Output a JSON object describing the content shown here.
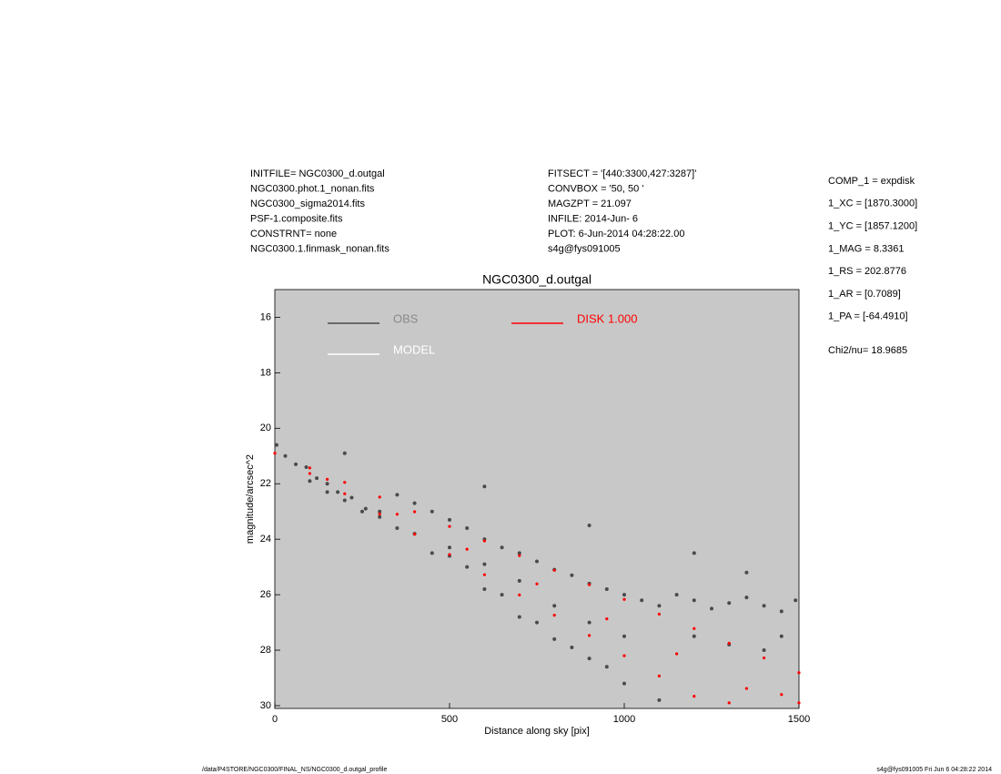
{
  "header": {
    "left": [
      "INITFILE= NGC0300_d.outgal",
      "NGC0300.phot.1_nonan.fits",
      "NGC0300_sigma2014.fits",
      "PSF-1.composite.fits",
      "CONSTRNT= none",
      "NGC0300.1.finmask_nonan.fits"
    ],
    "middle": [
      "FITSECT = '[440:3300,427:3287]'",
      "CONVBOX = '50, 50  '",
      "MAGZPT =              21.097",
      "INFILE: 2014-Jun- 6",
      "PLOT:  6-Jun-2014 04:28:22.00",
      "s4g@fys091005"
    ],
    "right": [
      "COMP_1  = expdisk",
      "1_XC     = [1870.3000]",
      "1_YC     = [1857.1200]",
      "1_MAG   = 8.3361",
      "1_RS     = 202.8776",
      "1_AR     = [0.7089]",
      "1_PA     = [-64.4910]"
    ],
    "chi2": "Chi2/nu=      18.9685"
  },
  "footer": {
    "left": "/data/P4STORE/NGC0300/FINAL_NS/NGC0300_d.outgal_profile",
    "right": "s4g@fys091005  Fri Jun  6 04:28:22 2014"
  },
  "chart_data": {
    "type": "scatter",
    "title": "NGC0300_d.outgal",
    "x_label": "Distance along sky [pix]",
    "y_label": "magnitude/arcsec^2",
    "xlim": [
      0,
      1500
    ],
    "xticks": [
      0,
      500,
      1000,
      1500
    ],
    "ylim": [
      15,
      30.1
    ],
    "y_reversed": true,
    "yticks": [
      16,
      18,
      20,
      22,
      24,
      26,
      28,
      30
    ],
    "background": "#c8c8c8",
    "series": [
      {
        "name": "OBS",
        "color": "#4a4a4a",
        "x": [
          5,
          30,
          60,
          90,
          120,
          150,
          180,
          220,
          260,
          300,
          350,
          400,
          450,
          500,
          550,
          600,
          650,
          700,
          750,
          800,
          850,
          900,
          950,
          1000,
          1050,
          1100,
          1150,
          1200,
          1250,
          1300,
          1350,
          1400,
          1450,
          1490,
          400,
          500,
          600,
          700,
          800,
          900,
          1000,
          1100,
          550,
          650,
          750,
          850,
          950,
          300,
          200,
          100,
          1200,
          1300,
          1400,
          1450,
          1000,
          900,
          800,
          700,
          600,
          500,
          450,
          350,
          250,
          150,
          200,
          600,
          900,
          1200,
          1350
        ],
        "y": [
          20.6,
          21.0,
          21.3,
          21.4,
          21.8,
          22.0,
          22.3,
          22.5,
          22.9,
          23.2,
          22.4,
          22.7,
          23.0,
          23.3,
          23.6,
          24.0,
          24.3,
          24.5,
          24.8,
          25.1,
          25.3,
          25.6,
          25.8,
          26.0,
          26.2,
          26.4,
          26.0,
          26.2,
          26.5,
          26.3,
          26.1,
          26.4,
          26.6,
          26.2,
          23.8,
          24.6,
          25.8,
          26.8,
          27.6,
          28.3,
          29.2,
          29.8,
          25.0,
          26.0,
          27.0,
          27.9,
          28.6,
          23.0,
          22.6,
          21.9,
          27.5,
          27.8,
          28.0,
          27.5,
          27.5,
          27.0,
          26.4,
          25.5,
          24.9,
          24.3,
          24.5,
          23.6,
          23.0,
          22.3,
          20.9,
          22.1,
          23.5,
          24.5,
          25.2
        ]
      },
      {
        "name": "MODEL",
        "color": "#ffffff"
      },
      {
        "name": "DISK  1.000",
        "color": "#ff0000",
        "x": [
          0,
          100,
          200,
          300,
          400,
          500,
          600,
          700,
          800,
          900,
          1000,
          1100,
          1200,
          1300,
          1400,
          1500,
          100,
          200,
          300,
          400,
          500,
          600,
          700,
          800,
          900,
          1000,
          1100,
          1200,
          150,
          350,
          550,
          750,
          950,
          1150,
          1350,
          1300,
          1450,
          1500
        ],
        "y": [
          20.9,
          21.43,
          21.95,
          22.48,
          23.01,
          23.54,
          24.06,
          24.59,
          25.12,
          25.64,
          26.17,
          26.7,
          27.22,
          27.75,
          28.28,
          28.81,
          21.63,
          22.36,
          23.09,
          23.82,
          24.55,
          25.28,
          26.01,
          26.74,
          27.47,
          28.2,
          28.93,
          29.66,
          21.84,
          23.1,
          24.36,
          25.61,
          26.87,
          28.13,
          29.38,
          29.9,
          29.6,
          29.9
        ]
      }
    ]
  }
}
